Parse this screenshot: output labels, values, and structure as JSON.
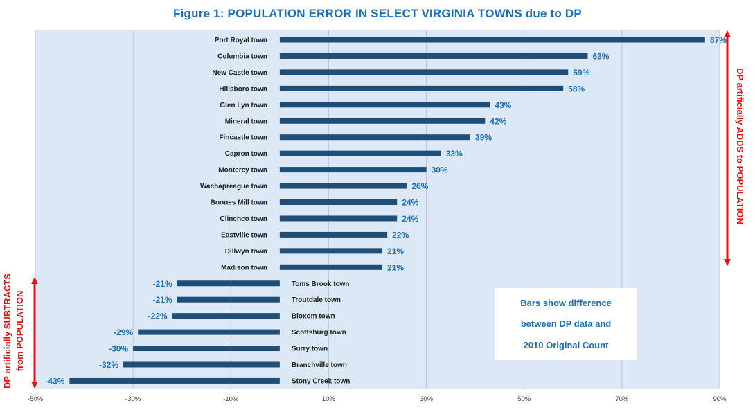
{
  "chart_data": {
    "type": "bar",
    "orientation": "horizontal",
    "title": "Figure 1: POPULATION ERROR IN SELECT VIRGINIA TOWNS due to DP",
    "categories": [
      "Port Royal town",
      "Columbia town",
      "New Castle town",
      "Hillsboro town",
      "Glen Lyn town",
      "Mineral town",
      "Fincastle town",
      "Capron town",
      "Monterey town",
      "Wachapreague town",
      "Boones Mill town",
      "Clinchco town",
      "Eastville town",
      "Dillwyn town",
      "Madison town",
      "Toms Brook town",
      "Troutdale town",
      "Bloxom town",
      "Scottsburg town",
      "Surry town",
      "Branchville town",
      "Stony Creek town"
    ],
    "values": [
      87,
      63,
      59,
      58,
      43,
      42,
      39,
      33,
      30,
      26,
      24,
      24,
      22,
      21,
      21,
      -21,
      -21,
      -22,
      -29,
      -30,
      -32,
      -43
    ],
    "value_labels": [
      "87%",
      "63%",
      "59%",
      "58%",
      "43%",
      "42%",
      "39%",
      "33%",
      "30%",
      "26%",
      "24%",
      "24%",
      "22%",
      "21%",
      "21%",
      "-21%",
      "-21%",
      "-22%",
      "-29%",
      "-30%",
      "-32%",
      "-43%"
    ],
    "unit": "%",
    "xlim": [
      -50,
      90
    ],
    "xticks": [
      -50,
      -30,
      -10,
      10,
      30,
      50,
      70,
      90
    ],
    "xtick_labels": [
      "-50%",
      "-30%",
      "-10%",
      "10%",
      "30%",
      "50%",
      "70%",
      "90%"
    ],
    "grid": true,
    "colors": {
      "bar": "#1f4e79",
      "value_label": "#1a6fb8",
      "annotation": "#e8100f",
      "plot_bg": "#dce8f5",
      "title": "#1a6fb8"
    },
    "annotations": {
      "right": "DP artificially ADDS to POPULATION",
      "left_line1": "DP artificially SUBTRACTS",
      "left_line2": "from POPULATION",
      "note": [
        "Bars show difference",
        "between DP data and",
        "2010 Original Count"
      ]
    }
  }
}
